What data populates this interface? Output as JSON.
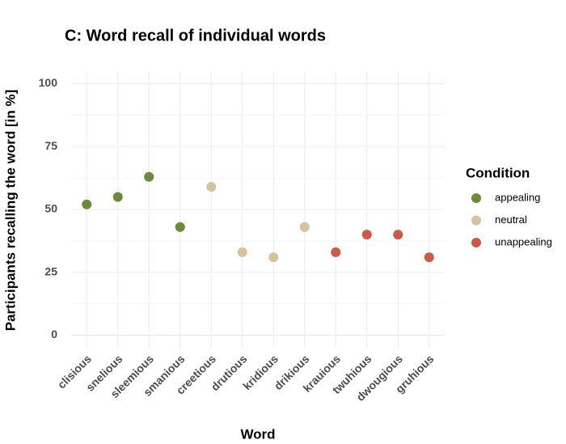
{
  "chart_data": {
    "type": "dot",
    "title": "C: Word recall of individual words",
    "x_label": "Word",
    "y_label": "Participants recalling the word [in %]",
    "legend_title": "Condition",
    "legend_position": "right",
    "grid": true,
    "categories": [
      "clisious",
      "snelious",
      "sleemious",
      "smanious",
      "creetious",
      "drutious",
      "kridious",
      "drikious",
      "krauious",
      "twuhious",
      "dwougious",
      "gruhious"
    ],
    "series": [
      {
        "name": "appealing",
        "color": "#6b8a3a",
        "values": [
          52,
          55,
          63,
          43,
          null,
          null,
          null,
          null,
          null,
          null,
          null,
          null
        ]
      },
      {
        "name": "neutral",
        "color": "#d6c29c",
        "values": [
          null,
          null,
          null,
          null,
          59,
          33,
          31,
          43,
          null,
          null,
          null,
          null
        ]
      },
      {
        "name": "unappealing",
        "color": "#cc5a46",
        "values": [
          null,
          null,
          null,
          null,
          null,
          null,
          null,
          null,
          33,
          40,
          40,
          31
        ]
      }
    ],
    "ylim": [
      -5,
      105
    ],
    "yticks": [
      0,
      25,
      50,
      75,
      100
    ]
  }
}
